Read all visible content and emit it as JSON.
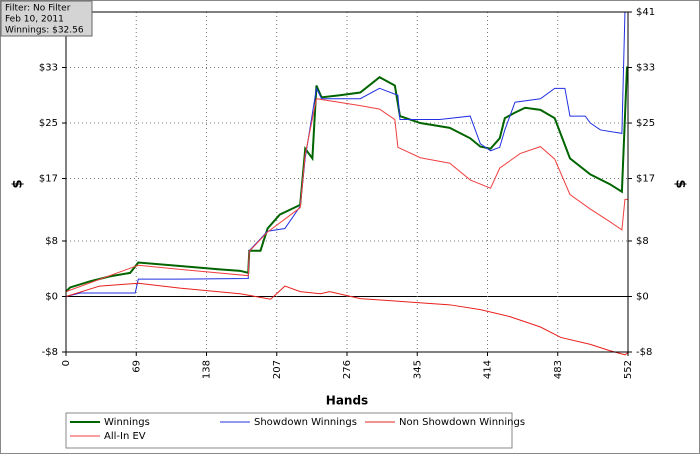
{
  "chart_data": {
    "type": "line",
    "info": [
      "Filter: No Filter",
      "Feb 10, 2011",
      "Winnings: $32.56"
    ],
    "xlabel": "Hands",
    "ylabel": "$",
    "y2label": "$",
    "xlim": [
      0,
      552
    ],
    "xticks": [
      0,
      69,
      138,
      207,
      276,
      345,
      414,
      483,
      552
    ],
    "ylim": [
      -8,
      41
    ],
    "yticks": [
      {
        "value": -8,
        "label": "-$8"
      },
      {
        "value": 0,
        "label": "$0"
      },
      {
        "value": 8,
        "label": "$8"
      },
      {
        "value": 17,
        "label": "$17"
      },
      {
        "value": 25,
        "label": "$25"
      },
      {
        "value": 33,
        "label": "$33"
      }
    ],
    "y2lim": [
      -8,
      41
    ],
    "y2ticks": [
      {
        "value": -8,
        "label": "-$8"
      },
      {
        "value": 0,
        "label": "$0"
      },
      {
        "value": 8,
        "label": "$8"
      },
      {
        "value": 17,
        "label": "$17"
      },
      {
        "value": 25,
        "label": "$25"
      },
      {
        "value": 33,
        "label": "$33"
      },
      {
        "value": 41,
        "label": "$41"
      }
    ],
    "grid": true,
    "series": [
      {
        "name": "Winnings",
        "color": "#006400",
        "x": [
          0,
          4,
          24,
          43,
          63,
          71,
          112,
          151,
          171,
          179,
          180,
          191,
          198,
          210,
          220,
          230,
          235,
          242,
          246,
          251,
          269,
          289,
          308,
          323,
          328,
          348,
          377,
          397,
          407,
          417,
          426,
          431,
          441,
          451,
          466,
          480,
          495,
          515,
          534,
          546,
          551,
          552
        ],
        "values": [
          0.7,
          1.3,
          2.2,
          2.9,
          3.4,
          4.9,
          4.4,
          3.9,
          3.7,
          3.4,
          6.6,
          6.6,
          9.8,
          11.8,
          12.5,
          13.2,
          21.3,
          19.9,
          30.4,
          28.7,
          29,
          29.4,
          31.6,
          30.4,
          26,
          25,
          24.3,
          22.8,
          21.6,
          21.3,
          22.8,
          25.7,
          26.5,
          27.2,
          26.9,
          25.7,
          19.9,
          17.6,
          16.2,
          15.1,
          33,
          33
        ]
      },
      {
        "name": "Showdown Winnings",
        "color": "#2030e0",
        "x": [
          0,
          14,
          68,
          71,
          112,
          179,
          180,
          198,
          215,
          230,
          235,
          246,
          251,
          289,
          308,
          326,
          328,
          367,
          397,
          407,
          417,
          426,
          431,
          441,
          466,
          480,
          490,
          495,
          510,
          515,
          525,
          546,
          549,
          552
        ],
        "values": [
          0,
          0.5,
          0.5,
          2.5,
          2.5,
          2.6,
          6.6,
          9.4,
          9.8,
          13,
          20,
          30,
          28.5,
          28.5,
          30,
          29,
          25.5,
          25.5,
          26,
          22,
          21,
          21.5,
          24,
          28,
          28.5,
          30,
          30,
          26,
          26,
          25,
          24,
          23.5,
          41,
          41
        ]
      },
      {
        "name": "Non Showdown Winnings",
        "color": "#e8201c",
        "x": [
          0,
          33,
          71,
          112,
          171,
          201,
          215,
          230,
          250,
          259,
          289,
          328,
          377,
          407,
          436,
          466,
          486,
          515,
          534,
          549,
          552
        ],
        "values": [
          0,
          1.5,
          1.9,
          1.2,
          0.4,
          -0.4,
          1.5,
          0.7,
          0.4,
          0.7,
          -0.3,
          -0.7,
          -1.2,
          -1.9,
          -2.9,
          -4.4,
          -5.9,
          -6.9,
          -7.8,
          -8.4,
          -8.1
        ]
      },
      {
        "name": "All-In EV",
        "color": "#f04040",
        "x": [
          0,
          71,
          112,
          179,
          180,
          198,
          230,
          235,
          246,
          289,
          308,
          323,
          326,
          348,
          377,
          397,
          417,
          426,
          446,
          466,
          480,
          495,
          515,
          534,
          546,
          549,
          552
        ],
        "values": [
          0.7,
          4.5,
          3.9,
          3,
          6.5,
          9.3,
          12.8,
          20.5,
          28.5,
          27.5,
          27,
          25.5,
          21.5,
          20,
          19.2,
          16.8,
          15.6,
          18.5,
          20.6,
          21.6,
          19.8,
          14.7,
          12.6,
          10.8,
          9.6,
          14,
          14
        ]
      }
    ]
  }
}
